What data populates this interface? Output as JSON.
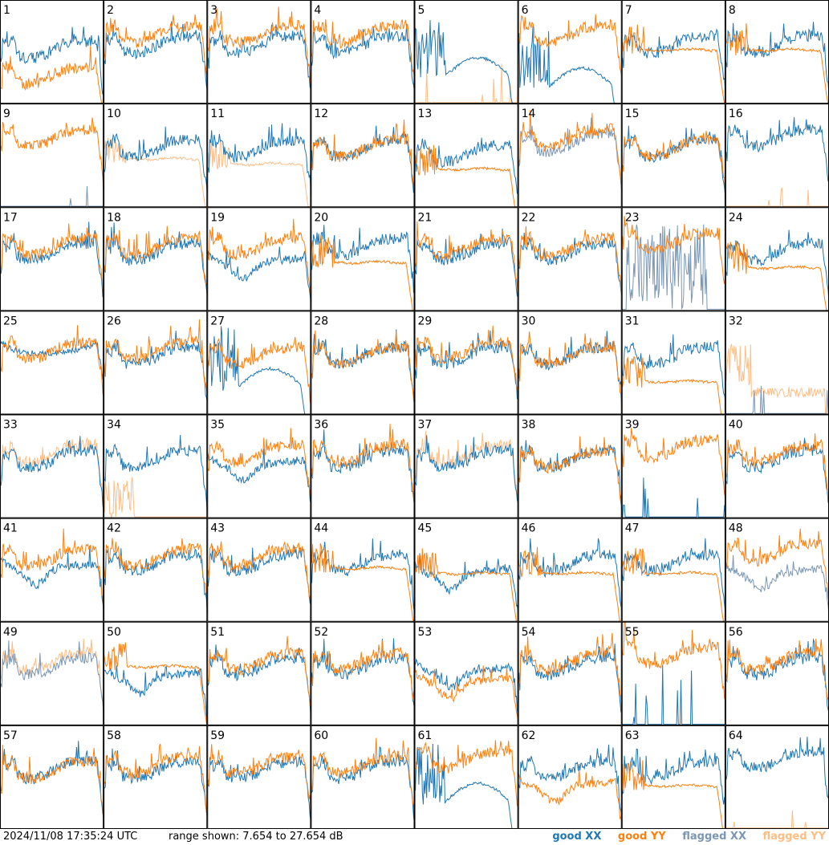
{
  "footer": {
    "timestamp": "2024/11/08 17:35:24 UTC",
    "range_text": "range shown: 7.654 to 27.654 dB"
  },
  "legend": [
    {
      "label": "good XX",
      "color": "#1f77b4"
    },
    {
      "label": "good YY",
      "color": "#ff7f0e"
    },
    {
      "label": "flagged XX",
      "color": "#7b97b4"
    },
    {
      "label": "flagged YY",
      "color": "#ffbd84"
    }
  ],
  "chart_data": {
    "type": "line",
    "grid": {
      "rows": 8,
      "cols": 8
    },
    "ylim": [
      7.654,
      27.654
    ],
    "yunit": "dB",
    "xlabel": "",
    "ylabel": "",
    "panels": [
      {
        "label": "1",
        "xx": "good",
        "yy": "good",
        "xx_shape": "A",
        "yy_shape": "A",
        "xx_base": 18,
        "yy_base": 13,
        "xx_mag": 8
      },
      {
        "label": "2",
        "xx": "good",
        "yy": "good",
        "xx_shape": "A",
        "yy_shape": "A",
        "xx_base": 19,
        "yy_base": 21,
        "xx_mag": 5
      },
      {
        "label": "3",
        "xx": "good",
        "yy": "good",
        "xx_shape": "A",
        "yy_shape": "A",
        "xx_base": 19,
        "yy_base": 21,
        "xx_mag": 5
      },
      {
        "label": "4",
        "xx": "good",
        "yy": "good",
        "xx_shape": "A",
        "yy_shape": "A",
        "xx_base": 19,
        "yy_base": 21,
        "xx_mag": 5
      },
      {
        "label": "5",
        "xx": "good",
        "yy": "flagged",
        "xx_shape": "B",
        "yy_shape": "F",
        "xx_base": 16,
        "yy_base": 8,
        "xx_mag": 8
      },
      {
        "label": "6",
        "xx": "good",
        "yy": "good",
        "xx_shape": "B",
        "yy_shape": "A",
        "xx_base": 14,
        "yy_base": 21,
        "xx_mag": 9
      },
      {
        "label": "7",
        "xx": "good",
        "yy": "good",
        "xx_shape": "A",
        "yy_shape": "D",
        "xx_base": 19,
        "yy_base": 18,
        "xx_mag": 5
      },
      {
        "label": "8",
        "xx": "good",
        "yy": "good",
        "xx_shape": "A",
        "yy_shape": "D",
        "xx_base": 19,
        "yy_base": 18,
        "xx_mag": 5
      },
      {
        "label": "9",
        "xx": "flagged",
        "yy": "good",
        "xx_shape": "F",
        "yy_shape": "A",
        "xx_base": 8,
        "yy_base": 21,
        "xx_mag": 8
      },
      {
        "label": "10",
        "xx": "good",
        "yy": "flagged",
        "xx_shape": "A",
        "yy_shape": "D",
        "xx_base": 19,
        "yy_base": 17,
        "xx_mag": 5
      },
      {
        "label": "11",
        "xx": "good",
        "yy": "flagged",
        "xx_shape": "A",
        "yy_shape": "D",
        "xx_base": 19,
        "yy_base": 16,
        "xx_mag": 5
      },
      {
        "label": "12",
        "xx": "good",
        "yy": "good",
        "xx_shape": "A",
        "yy_shape": "A",
        "xx_base": 19,
        "yy_base": 19,
        "xx_mag": 5
      },
      {
        "label": "13",
        "xx": "good",
        "yy": "good",
        "xx_shape": "A",
        "yy_shape": "D",
        "xx_base": 18,
        "yy_base": 15,
        "xx_mag": 6
      },
      {
        "label": "14",
        "xx": "flagged",
        "yy": "good",
        "xx_shape": "A",
        "yy_shape": "A",
        "xx_base": 20,
        "yy_base": 21,
        "xx_mag": 4
      },
      {
        "label": "15",
        "xx": "good",
        "yy": "good",
        "xx_shape": "A",
        "yy_shape": "A",
        "xx_base": 19,
        "yy_base": 19,
        "xx_mag": 5
      },
      {
        "label": "16",
        "xx": "good",
        "yy": "flagged",
        "xx_shape": "A",
        "yy_shape": "F",
        "xx_base": 21,
        "yy_base": 8,
        "xx_mag": 5
      },
      {
        "label": "17",
        "xx": "good",
        "yy": "good",
        "xx_shape": "A",
        "yy_shape": "A",
        "xx_base": 19,
        "yy_base": 20,
        "xx_mag": 5
      },
      {
        "label": "18",
        "xx": "good",
        "yy": "good",
        "xx_shape": "A",
        "yy_shape": "A",
        "xx_base": 19,
        "yy_base": 20,
        "xx_mag": 5
      },
      {
        "label": "19",
        "xx": "good",
        "yy": "good",
        "xx_shape": "C",
        "yy_shape": "A",
        "xx_base": 16,
        "yy_base": 20,
        "xx_mag": 7
      },
      {
        "label": "20",
        "xx": "good",
        "yy": "good",
        "xx_shape": "A",
        "yy_shape": "D",
        "xx_base": 20,
        "yy_base": 17,
        "xx_mag": 5
      },
      {
        "label": "21",
        "xx": "good",
        "yy": "good",
        "xx_shape": "A",
        "yy_shape": "A",
        "xx_base": 19,
        "yy_base": 20,
        "xx_mag": 5
      },
      {
        "label": "22",
        "xx": "good",
        "yy": "good",
        "xx_shape": "A",
        "yy_shape": "A",
        "xx_base": 19,
        "yy_base": 20,
        "xx_mag": 5
      },
      {
        "label": "23",
        "xx": "flagged",
        "yy": "good",
        "xx_shape": "N",
        "yy_shape": "A",
        "xx_base": 12,
        "yy_base": 21,
        "xx_mag": 12
      },
      {
        "label": "24",
        "xx": "good",
        "yy": "good",
        "xx_shape": "A",
        "yy_shape": "D",
        "xx_base": 19,
        "yy_base": 16,
        "xx_mag": 5
      },
      {
        "label": "25",
        "xx": "good",
        "yy": "good",
        "xx_shape": "H",
        "yy_shape": "A",
        "xx_base": 20,
        "yy_base": 20,
        "xx_mag": 5
      },
      {
        "label": "26",
        "xx": "good",
        "yy": "good",
        "xx_shape": "A",
        "yy_shape": "A",
        "xx_base": 19,
        "yy_base": 20,
        "xx_mag": 5
      },
      {
        "label": "27",
        "xx": "good",
        "yy": "good",
        "xx_shape": "B",
        "yy_shape": "A",
        "xx_base": 16,
        "yy_base": 19,
        "xx_mag": 9
      },
      {
        "label": "28",
        "xx": "good",
        "yy": "good",
        "xx_shape": "A",
        "yy_shape": "A",
        "xx_base": 19,
        "yy_base": 19,
        "xx_mag": 5
      },
      {
        "label": "29",
        "xx": "good",
        "yy": "good",
        "xx_shape": "A",
        "yy_shape": "A",
        "xx_base": 19,
        "yy_base": 20,
        "xx_mag": 5
      },
      {
        "label": "30",
        "xx": "good",
        "yy": "good",
        "xx_shape": "A",
        "yy_shape": "A",
        "xx_base": 19,
        "yy_base": 19,
        "xx_mag": 5
      },
      {
        "label": "31",
        "xx": "good",
        "yy": "good",
        "xx_shape": "A",
        "yy_shape": "D",
        "xx_base": 19,
        "yy_base": 14,
        "xx_mag": 5
      },
      {
        "label": "32",
        "xx": "flagged",
        "yy": "flagged",
        "xx_shape": "F",
        "yy_shape": "N2",
        "xx_base": 8,
        "yy_base": 15,
        "xx_mag": 8
      },
      {
        "label": "33",
        "xx": "good",
        "yy": "flagged",
        "xx_shape": "A",
        "yy_shape": "A",
        "xx_base": 19,
        "yy_base": 20,
        "xx_mag": 4
      },
      {
        "label": "34",
        "xx": "good",
        "yy": "flagged",
        "xx_shape": "A",
        "yy_shape": "S",
        "xx_base": 19,
        "yy_base": 8,
        "xx_mag": 5
      },
      {
        "label": "35",
        "xx": "good",
        "yy": "good",
        "xx_shape": "C",
        "yy_shape": "A",
        "xx_base": 17,
        "yy_base": 20,
        "xx_mag": 6
      },
      {
        "label": "36",
        "xx": "good",
        "yy": "good",
        "xx_shape": "A",
        "yy_shape": "A",
        "xx_base": 19,
        "yy_base": 20,
        "xx_mag": 5
      },
      {
        "label": "37",
        "xx": "good",
        "yy": "flagged",
        "xx_shape": "A",
        "yy_shape": "A",
        "xx_base": 19,
        "yy_base": 20,
        "xx_mag": 4
      },
      {
        "label": "38",
        "xx": "good",
        "yy": "good",
        "xx_shape": "A",
        "yy_shape": "A",
        "xx_base": 19,
        "yy_base": 19,
        "xx_mag": 4
      },
      {
        "label": "39",
        "xx": "good",
        "yy": "good",
        "xx_shape": "F",
        "yy_shape": "A",
        "xx_base": 8,
        "yy_base": 21,
        "xx_mag": 8
      },
      {
        "label": "40",
        "xx": "good",
        "yy": "good",
        "xx_shape": "A",
        "yy_shape": "A",
        "xx_base": 19,
        "yy_base": 20,
        "xx_mag": 5
      },
      {
        "label": "41",
        "xx": "good",
        "yy": "good",
        "xx_shape": "C",
        "yy_shape": "A",
        "xx_base": 17,
        "yy_base": 20,
        "xx_mag": 6
      },
      {
        "label": "42",
        "xx": "good",
        "yy": "good",
        "xx_shape": "A",
        "yy_shape": "A",
        "xx_base": 19,
        "yy_base": 20,
        "xx_mag": 5
      },
      {
        "label": "43",
        "xx": "good",
        "yy": "good",
        "xx_shape": "A",
        "yy_shape": "A",
        "xx_base": 19,
        "yy_base": 20,
        "xx_mag": 5
      },
      {
        "label": "44",
        "xx": "good",
        "yy": "good",
        "xx_shape": "A",
        "yy_shape": "D",
        "xx_base": 19,
        "yy_base": 18,
        "xx_mag": 5
      },
      {
        "label": "45",
        "xx": "good",
        "yy": "good",
        "xx_shape": "C",
        "yy_shape": "D",
        "xx_base": 16,
        "yy_base": 17,
        "xx_mag": 7
      },
      {
        "label": "46",
        "xx": "good",
        "yy": "good",
        "xx_shape": "A",
        "yy_shape": "D",
        "xx_base": 19,
        "yy_base": 17,
        "xx_mag": 5
      },
      {
        "label": "47",
        "xx": "good",
        "yy": "good",
        "xx_shape": "A",
        "yy_shape": "D",
        "xx_base": 19,
        "yy_base": 17,
        "xx_mag": 5
      },
      {
        "label": "48",
        "xx": "flagged",
        "yy": "good",
        "xx_shape": "C",
        "yy_shape": "A",
        "xx_base": 16,
        "yy_base": 21,
        "xx_mag": 7
      },
      {
        "label": "49",
        "xx": "flagged",
        "yy": "flagged",
        "xx_shape": "A",
        "yy_shape": "A",
        "xx_base": 19,
        "yy_base": 20,
        "xx_mag": 4
      },
      {
        "label": "50",
        "xx": "good",
        "yy": "good",
        "xx_shape": "C",
        "yy_shape": "D",
        "xx_base": 16,
        "yy_base": 19,
        "xx_mag": 7
      },
      {
        "label": "51",
        "xx": "good",
        "yy": "good",
        "xx_shape": "A",
        "yy_shape": "A",
        "xx_base": 19,
        "yy_base": 20,
        "xx_mag": 5
      },
      {
        "label": "52",
        "xx": "good",
        "yy": "good",
        "xx_shape": "A",
        "yy_shape": "A",
        "xx_base": 19,
        "yy_base": 20,
        "xx_mag": 5
      },
      {
        "label": "53",
        "xx": "good",
        "yy": "good",
        "xx_shape": "C",
        "yy_shape": "C",
        "xx_base": 17,
        "yy_base": 15,
        "xx_mag": 7
      },
      {
        "label": "54",
        "xx": "good",
        "yy": "good",
        "xx_shape": "A",
        "yy_shape": "A",
        "xx_base": 19,
        "yy_base": 20,
        "xx_mag": 5
      },
      {
        "label": "55",
        "xx": "good",
        "yy": "good",
        "xx_shape": "F",
        "yy_shape": "A",
        "xx_base": 8,
        "yy_base": 21,
        "xx_mag": 12
      },
      {
        "label": "56",
        "xx": "good",
        "yy": "good",
        "xx_shape": "A",
        "yy_shape": "A",
        "xx_base": 19,
        "yy_base": 20,
        "xx_mag": 5
      },
      {
        "label": "57",
        "xx": "good",
        "yy": "good",
        "xx_shape": "A",
        "yy_shape": "A",
        "xx_base": 19,
        "yy_base": 19,
        "xx_mag": 5
      },
      {
        "label": "58",
        "xx": "good",
        "yy": "good",
        "xx_shape": "A",
        "yy_shape": "A",
        "xx_base": 19,
        "yy_base": 20,
        "xx_mag": 5
      },
      {
        "label": "59",
        "xx": "good",
        "yy": "good",
        "xx_shape": "A",
        "yy_shape": "A",
        "xx_base": 19,
        "yy_base": 20,
        "xx_mag": 5
      },
      {
        "label": "60",
        "xx": "good",
        "yy": "good",
        "xx_shape": "A",
        "yy_shape": "A",
        "xx_base": 19,
        "yy_base": 20,
        "xx_mag": 5
      },
      {
        "label": "61",
        "xx": "good",
        "yy": "good",
        "xx_shape": "B",
        "yy_shape": "A",
        "xx_base": 16,
        "yy_base": 21,
        "xx_mag": 9
      },
      {
        "label": "62",
        "xx": "good",
        "yy": "good",
        "xx_shape": "A",
        "yy_shape": "C",
        "xx_base": 19,
        "yy_base": 15,
        "xx_mag": 5
      },
      {
        "label": "63",
        "xx": "good",
        "yy": "good",
        "xx_shape": "A",
        "yy_shape": "D",
        "xx_base": 19,
        "yy_base": 16,
        "xx_mag": 5
      },
      {
        "label": "64",
        "xx": "good",
        "yy": "flagged",
        "xx_shape": "A",
        "yy_shape": "F",
        "xx_base": 21,
        "yy_base": 8,
        "xx_mag": 5
      }
    ]
  }
}
